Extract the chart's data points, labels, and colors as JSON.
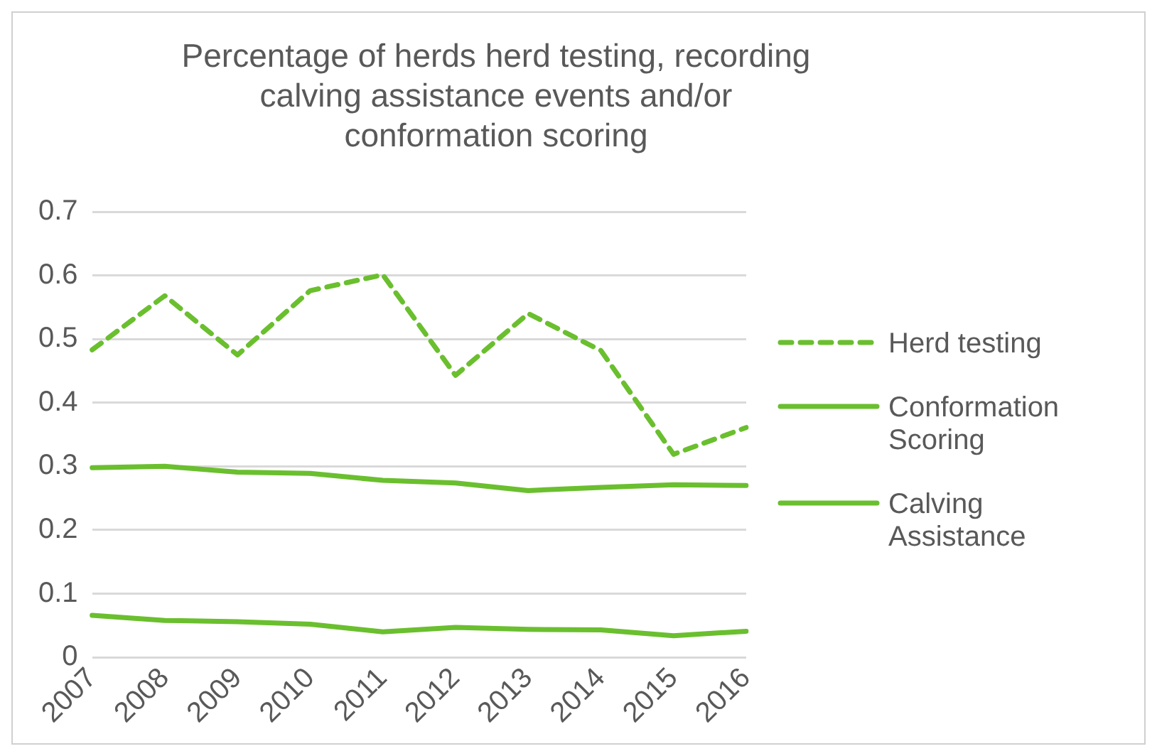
{
  "chart_data": {
    "type": "line",
    "title": "Percentage of herds herd testing, recording calving assistance events and/or conformation scoring",
    "categories": [
      "2007",
      "2008",
      "2009",
      "2010",
      "2011",
      "2012",
      "2013",
      "2014",
      "2015",
      "2016"
    ],
    "series": [
      {
        "name": "Herd testing",
        "color": "#6abf2e",
        "line_style": "dashed",
        "values": [
          0.483,
          0.568,
          0.475,
          0.576,
          0.601,
          0.443,
          0.54,
          0.482,
          0.319,
          0.361
        ]
      },
      {
        "name": "Conformation Scoring",
        "color": "#6abf2e",
        "line_style": "solid",
        "values": [
          0.298,
          0.3,
          0.291,
          0.289,
          0.278,
          0.274,
          0.262,
          0.267,
          0.271,
          0.27
        ]
      },
      {
        "name": "Calving Assistance",
        "color": "#6abf2e",
        "line_style": "solid",
        "values": [
          0.066,
          0.058,
          0.056,
          0.052,
          0.04,
          0.047,
          0.044,
          0.043,
          0.034,
          0.041
        ]
      }
    ],
    "ylim": [
      0,
      0.7
    ],
    "yticks": [
      0,
      0.1,
      0.2,
      0.3,
      0.4,
      0.5,
      0.6,
      0.7
    ],
    "grid": "y",
    "legend": "right",
    "marker": "none"
  }
}
